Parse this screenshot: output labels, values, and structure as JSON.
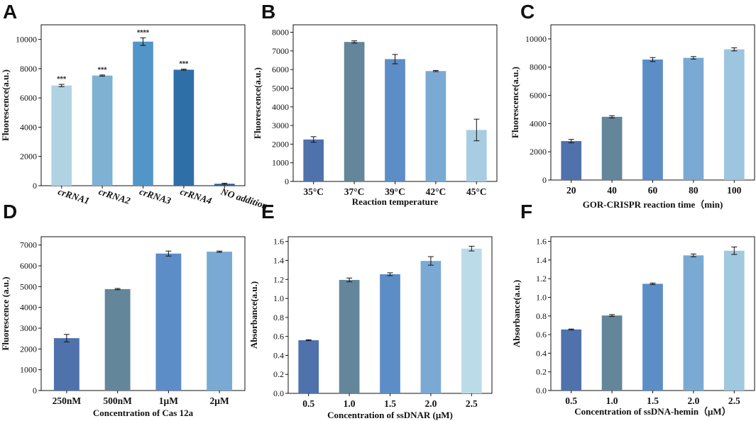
{
  "chart_data": [
    {
      "panel": "A",
      "type": "bar",
      "title": "",
      "xlabel": "",
      "ylabel": "Fluorescence(a.u.)",
      "categories": [
        "crRNA1",
        "crRNA2",
        "crRNA3",
        "crRNA4",
        "NO addition"
      ],
      "values": [
        6850,
        7530,
        9850,
        7930,
        130
      ],
      "errors": [
        80,
        40,
        260,
        40,
        40
      ],
      "annotations": [
        "***",
        "***",
        "****",
        "***",
        ""
      ],
      "colors": [
        "#b0d3e4",
        "#7eb1d3",
        "#5296c9",
        "#2f6fa8",
        "#2a5d9a"
      ],
      "ylim": [
        0,
        11000
      ],
      "yticks": [
        0,
        2000,
        4000,
        6000,
        8000,
        10000
      ],
      "rotate_labels": true
    },
    {
      "panel": "B",
      "type": "bar",
      "title": "",
      "xlabel": "Reaction temperature",
      "ylabel": "Fluorescence(a.u.)",
      "categories": [
        "35°C",
        "37°C",
        "39°C",
        "42°C",
        "45°C"
      ],
      "values": [
        2250,
        7480,
        6560,
        5920,
        2760
      ],
      "errors": [
        150,
        60,
        250,
        30,
        580
      ],
      "colors": [
        "#4f72ad",
        "#64869b",
        "#5d8dc6",
        "#7aaad3",
        "#a8cde2"
      ],
      "ylim": [
        0,
        8400
      ],
      "yticks": [
        0,
        1000,
        2000,
        3000,
        4000,
        5000,
        6000,
        7000,
        8000
      ]
    },
    {
      "panel": "C",
      "type": "bar",
      "title": "",
      "xlabel": "GOR-CRISPR reaction time（min)",
      "ylabel": "Fluorescence(a.u.)",
      "categories": [
        "20",
        "40",
        "60",
        "80",
        "100"
      ],
      "values": [
        2760,
        4480,
        8540,
        8660,
        9260
      ],
      "errors": [
        120,
        80,
        140,
        90,
        110
      ],
      "colors": [
        "#4f72ad",
        "#64869b",
        "#5d8dc6",
        "#7aaad3",
        "#9cc6df"
      ],
      "ylim": [
        0,
        11000
      ],
      "yticks": [
        0,
        2000,
        4000,
        6000,
        8000,
        10000
      ]
    },
    {
      "panel": "D",
      "type": "bar",
      "title": "",
      "xlabel": "Concentration of Cas 12a",
      "ylabel": "Fluorescence (a.u.)",
      "categories": [
        "250nM",
        "500nM",
        "1μM",
        "2μM"
      ],
      "values": [
        2520,
        4880,
        6590,
        6680
      ],
      "errors": [
        180,
        30,
        120,
        30
      ],
      "colors": [
        "#4f72ad",
        "#64869b",
        "#5d8dc6",
        "#7aaad3"
      ],
      "ylim": [
        0,
        7400
      ],
      "yticks": [
        0,
        1000,
        2000,
        3000,
        4000,
        5000,
        6000,
        7000
      ]
    },
    {
      "panel": "E",
      "type": "bar",
      "title": "",
      "xlabel": "Concentration of ssDNAR (μM)",
      "ylabel": "Absorbance(a.u.)",
      "categories": [
        "0.5",
        "1.0",
        "1.5",
        "2.0",
        "2.5"
      ],
      "values": [
        0.56,
        1.195,
        1.255,
        1.395,
        1.525
      ],
      "errors": [
        0.005,
        0.02,
        0.015,
        0.045,
        0.025
      ],
      "colors": [
        "#4f72ad",
        "#64869b",
        "#5d8dc6",
        "#7aaad3",
        "#bcdbe9"
      ],
      "ylim": [
        0,
        1.65
      ],
      "yticks": [
        "0.0",
        "0.2",
        "0.4",
        "0.6",
        "0.8",
        "1.0",
        "1.2",
        "1.4",
        "1.6"
      ]
    },
    {
      "panel": "F",
      "type": "bar",
      "title": "",
      "xlabel": "Concentration of ssDNA-hemin（μM）",
      "ylabel": "Absorbance(a.u.)",
      "categories": [
        "0.5",
        "1.0",
        "1.5",
        "2.0",
        "2.5"
      ],
      "values": [
        0.655,
        0.805,
        1.145,
        1.45,
        1.5
      ],
      "errors": [
        0.005,
        0.01,
        0.008,
        0.015,
        0.04
      ],
      "colors": [
        "#4f72ad",
        "#64869b",
        "#5d8dc6",
        "#7aaad3",
        "#a0c8de"
      ],
      "ylim": [
        0,
        1.65
      ],
      "yticks": [
        "0.0",
        "0.2",
        "0.4",
        "0.6",
        "0.8",
        "1.0",
        "1.2",
        "1.4",
        "1.6"
      ]
    }
  ]
}
